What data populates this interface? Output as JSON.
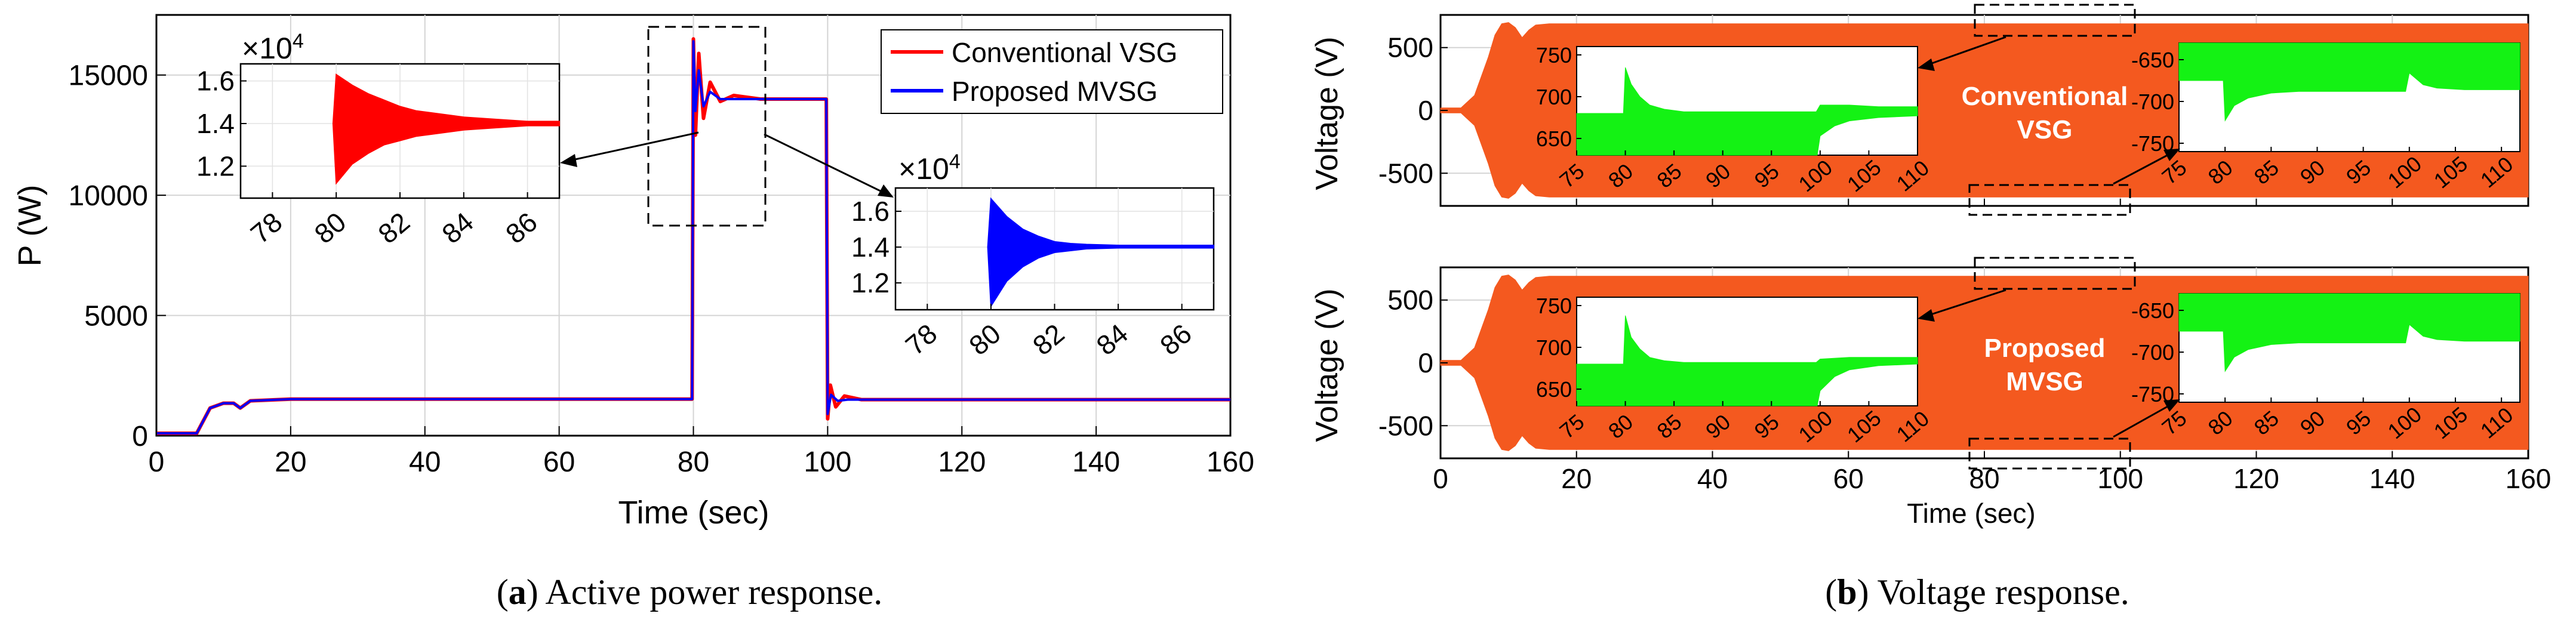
{
  "colors": {
    "conventional": "#ff0000",
    "proposed": "#0000ff",
    "voltage_band": "#f4591f",
    "zoom_fill": "#14f214",
    "plot_bg": "#ffffff",
    "grid": "#d4d4d4"
  },
  "captions": {
    "a_label": "a",
    "a_text": "Active power response.",
    "b_label": "b",
    "b_text": "Voltage response."
  },
  "overlay_labels": {
    "conventional_line1": "Conventional",
    "conventional_line2": "VSG",
    "proposed_line1": "Proposed",
    "proposed_line2": "MVSG"
  },
  "chart_data": [
    {
      "id": "active_power",
      "type": "line",
      "title": "",
      "xlabel": "Time (sec)",
      "ylabel": "P (W)",
      "xlim": [
        0,
        160
      ],
      "ylim": [
        0,
        17500
      ],
      "xticks": [
        0,
        20,
        40,
        60,
        80,
        100,
        120,
        140,
        160
      ],
      "yticks": [
        0,
        5000,
        10000,
        15000
      ],
      "grid": true,
      "legend": {
        "placement": "top-right",
        "entries": [
          "Conventional VSG",
          "Proposed MVSG"
        ]
      },
      "series": [
        {
          "name": "Conventional VSG",
          "color": "#ff0000",
          "points": [
            [
              0,
              100
            ],
            [
              6,
              100
            ],
            [
              8,
              1150
            ],
            [
              10,
              1350
            ],
            [
              11.5,
              1350
            ],
            [
              12.5,
              1150
            ],
            [
              14,
              1450
            ],
            [
              20,
              1520
            ],
            [
              60,
              1520
            ],
            [
              79.8,
              1520
            ],
            [
              80,
              16500
            ],
            [
              80.3,
              12500
            ],
            [
              80.8,
              15900
            ],
            [
              81.5,
              13200
            ],
            [
              82.5,
              14700
            ],
            [
              84,
              13900
            ],
            [
              86,
              14150
            ],
            [
              90,
              14000
            ],
            [
              99.8,
              14000
            ],
            [
              100,
              700
            ],
            [
              100.4,
              2100
            ],
            [
              101.2,
              1200
            ],
            [
              102.5,
              1650
            ],
            [
              105,
              1500
            ],
            [
              120,
              1500
            ],
            [
              160,
              1500
            ]
          ]
        },
        {
          "name": "Proposed MVSG",
          "color": "#0000ff",
          "points": [
            [
              0,
              100
            ],
            [
              6,
              100
            ],
            [
              8,
              1150
            ],
            [
              10,
              1350
            ],
            [
              11.5,
              1350
            ],
            [
              12.5,
              1150
            ],
            [
              14,
              1450
            ],
            [
              20,
              1520
            ],
            [
              60,
              1520
            ],
            [
              79.8,
              1520
            ],
            [
              80,
              16400
            ],
            [
              80.3,
              13500
            ],
            [
              80.8,
              15200
            ],
            [
              81.5,
              13700
            ],
            [
              82.5,
              14300
            ],
            [
              84,
              14000
            ],
            [
              90,
              14000
            ],
            [
              99.8,
              14000
            ],
            [
              100,
              900
            ],
            [
              100.5,
              1700
            ],
            [
              101.5,
              1450
            ],
            [
              103,
              1500
            ],
            [
              120,
              1500
            ],
            [
              160,
              1500
            ]
          ]
        }
      ]
    },
    {
      "id": "power_zoom_conventional",
      "type": "area",
      "series_name": "Conventional VSG",
      "color": "#ff0000",
      "xlim": [
        77,
        87
      ],
      "ylim": [
        1.05,
        1.68
      ],
      "xticks": [
        78,
        80,
        82,
        84,
        86
      ],
      "yticks": [
        1.2,
        1.4,
        1.6
      ],
      "exponent_label": "×10",
      "exponent_power": "4",
      "upper": [
        [
          79.9,
          1.4
        ],
        [
          80,
          1.63
        ],
        [
          80.5,
          1.58
        ],
        [
          81,
          1.54
        ],
        [
          81.5,
          1.51
        ],
        [
          82,
          1.48
        ],
        [
          82.5,
          1.46
        ],
        [
          83,
          1.45
        ],
        [
          84,
          1.43
        ],
        [
          85,
          1.42
        ],
        [
          86,
          1.41
        ],
        [
          87,
          1.41
        ]
      ],
      "lower": [
        [
          79.9,
          1.4
        ],
        [
          80,
          1.12
        ],
        [
          80.5,
          1.21
        ],
        [
          81,
          1.26
        ],
        [
          81.5,
          1.3
        ],
        [
          82,
          1.32
        ],
        [
          82.5,
          1.34
        ],
        [
          83,
          1.35
        ],
        [
          84,
          1.37
        ],
        [
          85,
          1.38
        ],
        [
          86,
          1.39
        ],
        [
          87,
          1.39
        ]
      ]
    },
    {
      "id": "power_zoom_proposed",
      "type": "area",
      "series_name": "Proposed MVSG",
      "color": "#0000ff",
      "xlim": [
        77,
        87
      ],
      "ylim": [
        1.05,
        1.73
      ],
      "xticks": [
        78,
        80,
        82,
        84,
        86
      ],
      "yticks": [
        1.2,
        1.4,
        1.6
      ],
      "exponent_label": "×10",
      "exponent_power": "4",
      "upper": [
        [
          79.9,
          1.4
        ],
        [
          80,
          1.67
        ],
        [
          80.5,
          1.57
        ],
        [
          81,
          1.5
        ],
        [
          81.5,
          1.46
        ],
        [
          82,
          1.43
        ],
        [
          82.5,
          1.42
        ],
        [
          83,
          1.415
        ],
        [
          84,
          1.41
        ],
        [
          87,
          1.41
        ]
      ],
      "lower": [
        [
          79.9,
          1.4
        ],
        [
          80,
          1.07
        ],
        [
          80.5,
          1.21
        ],
        [
          81,
          1.29
        ],
        [
          81.5,
          1.34
        ],
        [
          82,
          1.37
        ],
        [
          82.5,
          1.38
        ],
        [
          83,
          1.39
        ],
        [
          84,
          1.395
        ],
        [
          87,
          1.395
        ]
      ]
    },
    {
      "id": "voltage_conventional",
      "type": "area",
      "xlabel": "",
      "ylabel": "Voltage (V)",
      "xlim": [
        0,
        160
      ],
      "ylim": [
        -760,
        760
      ],
      "xticks": [
        0,
        20,
        40,
        60,
        80,
        100,
        120,
        140,
        160
      ],
      "yticks": [
        -500,
        0,
        500
      ],
      "color": "#f4591f",
      "envelope": [
        [
          0,
          20
        ],
        [
          3,
          20
        ],
        [
          5,
          120
        ],
        [
          7,
          420
        ],
        [
          8,
          600
        ],
        [
          9,
          690
        ],
        [
          10,
          700
        ],
        [
          11,
          660
        ],
        [
          12,
          580
        ],
        [
          13,
          640
        ],
        [
          14,
          680
        ],
        [
          16,
          690
        ],
        [
          160,
          690
        ]
      ],
      "zoom_insets": [
        {
          "color": "#14f214",
          "xlim": [
            75,
            110
          ],
          "ylim": [
            630,
            760
          ],
          "xticks": [
            75,
            80,
            85,
            90,
            95,
            100,
            105,
            110
          ],
          "yticks": [
            650,
            700,
            750
          ],
          "upper": [
            [
              75,
              680
            ],
            [
              79.8,
              680
            ],
            [
              80,
              735
            ],
            [
              80.6,
              715
            ],
            [
              81.5,
              700
            ],
            [
              82.5,
              690
            ],
            [
              84,
              685
            ],
            [
              86,
              682
            ],
            [
              99.6,
              682
            ],
            [
              100,
              690
            ],
            [
              103,
              690
            ],
            [
              106,
              688
            ],
            [
              110,
              688
            ]
          ],
          "lower": [
            [
              75,
              630
            ],
            [
              99.7,
              630
            ],
            [
              100,
              653
            ],
            [
              101.5,
              665
            ],
            [
              103,
              671
            ],
            [
              106,
              675
            ],
            [
              110,
              677
            ]
          ]
        },
        {
          "color": "#14f214",
          "xlim": [
            75,
            112
          ],
          "ylim": [
            -760,
            -630
          ],
          "xticks": [
            75,
            80,
            85,
            90,
            95,
            100,
            105,
            110
          ],
          "yticks": [
            -650,
            -700,
            -750
          ],
          "upper": [
            [
              75,
              -630
            ],
            [
              112,
              -630
            ]
          ],
          "lower": [
            [
              75,
              -675
            ],
            [
              79.8,
              -675
            ],
            [
              80,
              -723
            ],
            [
              81,
              -705
            ],
            [
              82.5,
              -696
            ],
            [
              85,
              -690
            ],
            [
              88,
              -688
            ],
            [
              99.6,
              -688
            ],
            [
              100,
              -666
            ],
            [
              101.5,
              -680
            ],
            [
              103,
              -684
            ],
            [
              106,
              -686
            ],
            [
              112,
              -686
            ]
          ]
        }
      ]
    },
    {
      "id": "voltage_proposed",
      "type": "area",
      "xlabel": "Time (sec)",
      "ylabel": "Voltage (V)",
      "xlim": [
        0,
        160
      ],
      "ylim": [
        -760,
        760
      ],
      "xticks": [
        0,
        20,
        40,
        60,
        80,
        100,
        120,
        140,
        160
      ],
      "yticks": [
        -500,
        0,
        500
      ],
      "color": "#f4591f",
      "envelope": [
        [
          0,
          20
        ],
        [
          3,
          20
        ],
        [
          5,
          120
        ],
        [
          7,
          420
        ],
        [
          8,
          600
        ],
        [
          9,
          690
        ],
        [
          10,
          700
        ],
        [
          11,
          660
        ],
        [
          12,
          580
        ],
        [
          13,
          640
        ],
        [
          14,
          680
        ],
        [
          16,
          690
        ],
        [
          160,
          690
        ]
      ],
      "zoom_insets": [
        {
          "color": "#14f214",
          "xlim": [
            75,
            110
          ],
          "ylim": [
            630,
            760
          ],
          "xticks": [
            75,
            80,
            85,
            90,
            95,
            100,
            105,
            110
          ],
          "yticks": [
            650,
            700,
            750
          ],
          "upper": [
            [
              75,
              680
            ],
            [
              79.8,
              680
            ],
            [
              80,
              738
            ],
            [
              80.6,
              712
            ],
            [
              81.5,
              698
            ],
            [
              82.5,
              688
            ],
            [
              84,
              684
            ],
            [
              86,
              682
            ],
            [
              99.6,
              682
            ],
            [
              100,
              686
            ],
            [
              103,
              688
            ],
            [
              110,
              688
            ]
          ],
          "lower": [
            [
              75,
              630
            ],
            [
              99.7,
              630
            ],
            [
              100,
              648
            ],
            [
              101.5,
              665
            ],
            [
              103,
              673
            ],
            [
              106,
              678
            ],
            [
              110,
              680
            ]
          ]
        },
        {
          "color": "#14f214",
          "xlim": [
            75,
            112
          ],
          "ylim": [
            -760,
            -630
          ],
          "xticks": [
            75,
            80,
            85,
            90,
            95,
            100,
            105,
            110
          ],
          "yticks": [
            -650,
            -700,
            -750
          ],
          "upper": [
            [
              75,
              -630
            ],
            [
              112,
              -630
            ]
          ],
          "lower": [
            [
              75,
              -675
            ],
            [
              79.8,
              -675
            ],
            [
              80,
              -723
            ],
            [
              81,
              -706
            ],
            [
              82.5,
              -697
            ],
            [
              85,
              -691
            ],
            [
              88,
              -689
            ],
            [
              99.6,
              -689
            ],
            [
              100,
              -667
            ],
            [
              101.5,
              -681
            ],
            [
              103,
              -685
            ],
            [
              106,
              -687
            ],
            [
              112,
              -687
            ]
          ]
        }
      ]
    }
  ]
}
